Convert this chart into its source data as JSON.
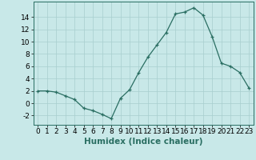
{
  "x": [
    0,
    1,
    2,
    3,
    4,
    5,
    6,
    7,
    8,
    9,
    10,
    11,
    12,
    13,
    14,
    15,
    16,
    17,
    18,
    19,
    20,
    21,
    22,
    23
  ],
  "y": [
    2.0,
    2.0,
    1.8,
    1.2,
    0.6,
    -0.8,
    -1.2,
    -1.8,
    -2.5,
    0.8,
    2.2,
    5.0,
    7.5,
    9.5,
    11.5,
    14.5,
    14.8,
    15.5,
    14.3,
    10.8,
    6.5,
    6.0,
    5.0,
    2.5
  ],
  "title": "",
  "xlabel": "Humidex (Indice chaleur)",
  "ylabel": "",
  "xlim": [
    -0.5,
    23.5
  ],
  "ylim": [
    -3.5,
    16.5
  ],
  "yticks": [
    -2,
    0,
    2,
    4,
    6,
    8,
    10,
    12,
    14
  ],
  "xticks": [
    0,
    1,
    2,
    3,
    4,
    5,
    6,
    7,
    8,
    9,
    10,
    11,
    12,
    13,
    14,
    15,
    16,
    17,
    18,
    19,
    20,
    21,
    22,
    23
  ],
  "line_color": "#2a6e62",
  "marker": "+",
  "background_color": "#c8e8e8",
  "grid_color": "#a8cece",
  "tick_label_fontsize": 6.5,
  "xlabel_fontsize": 7.5,
  "xlabel_color": "#2a6e62",
  "markersize": 3.5,
  "linewidth": 0.9
}
